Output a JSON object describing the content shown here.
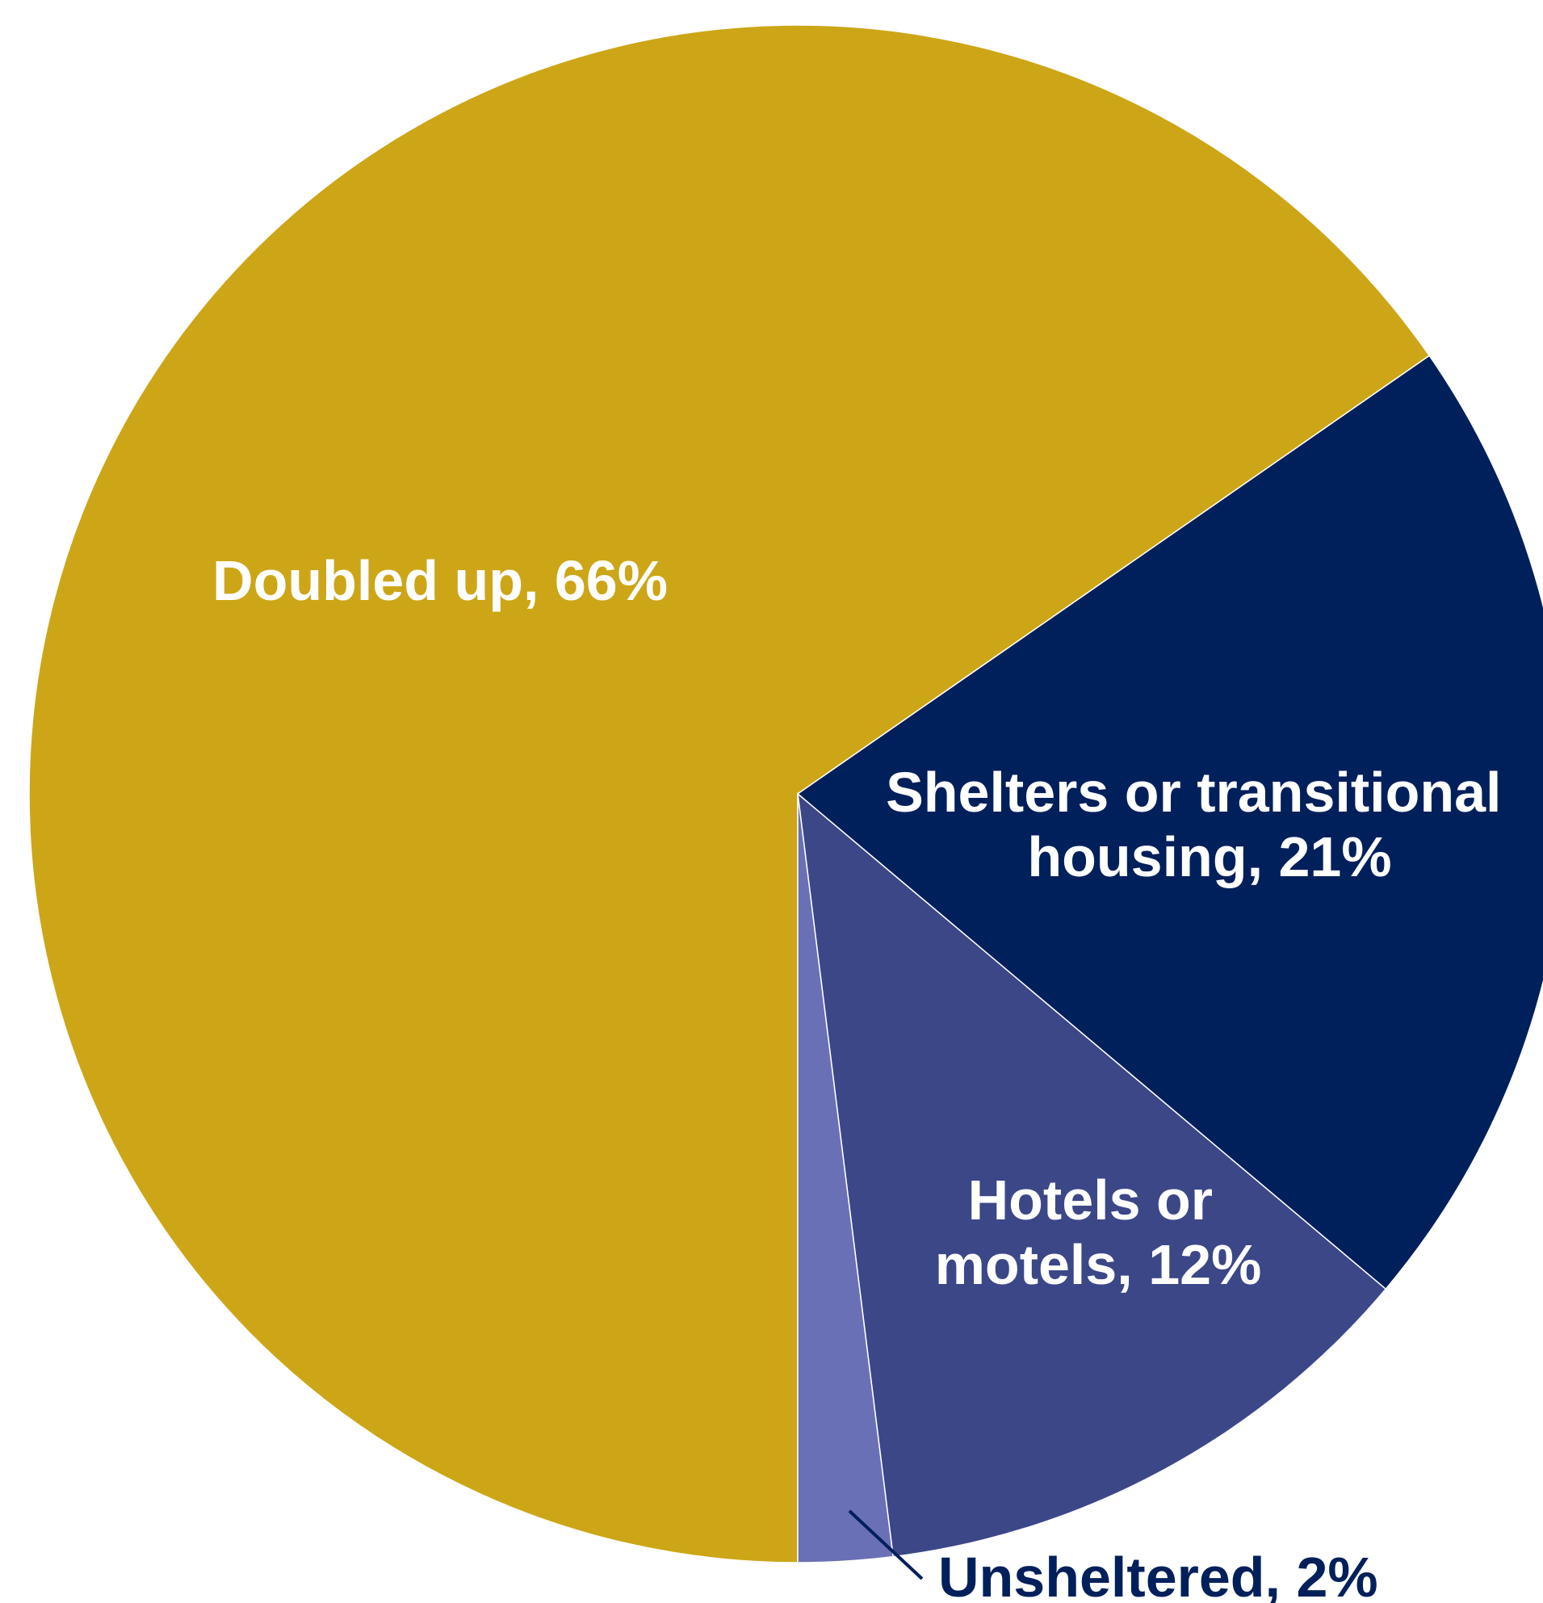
{
  "chart_data": {
    "type": "pie",
    "title": "",
    "slices": [
      {
        "label": "Doubled up, 66%",
        "lines": [
          "Doubled up, 66%"
        ],
        "value": 66,
        "color": "#CCA617",
        "label_color": "#FFFFFF"
      },
      {
        "label": "Shelters or transitional housing, 21%",
        "lines": [
          "Shelters or transitional",
          "housing, 21%"
        ],
        "value": 21,
        "color": "#00205B",
        "label_color": "#FFFFFF"
      },
      {
        "label": "Hotels or motels, 12%",
        "lines": [
          "Hotels or",
          "motels, 12%"
        ],
        "value": 12,
        "color": "#3C4788",
        "label_color": "#FFFFFF"
      },
      {
        "label": "Unsheltered, 2%",
        "lines": [
          "Unsheltered, 2%"
        ],
        "value": 2,
        "color": "#6A70B5",
        "label_color": "#00205B"
      }
    ]
  }
}
